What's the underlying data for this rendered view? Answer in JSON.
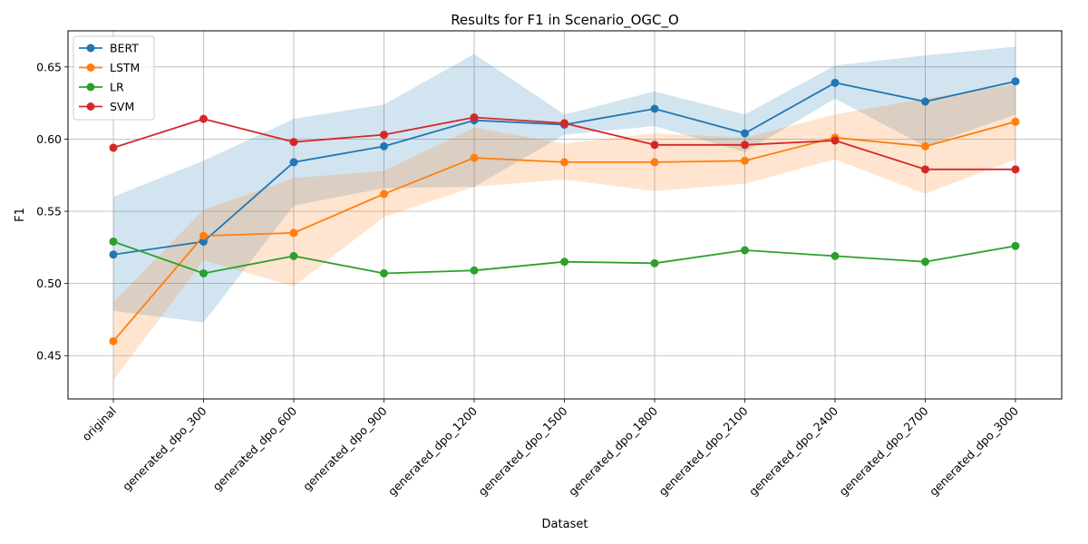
{
  "chart_data": {
    "type": "line",
    "title": "Results for F1 in Scenario_OGC_O",
    "xlabel": "Dataset",
    "ylabel": "F1",
    "ylim": [
      0.42,
      0.675
    ],
    "yticks": [
      0.45,
      0.5,
      0.55,
      0.6,
      0.65
    ],
    "ytick_labels": [
      "0.45",
      "0.50",
      "0.55",
      "0.60",
      "0.65"
    ],
    "grid": true,
    "legend_position": "top-left",
    "categories": [
      "original",
      "generated_dpo_300",
      "generated_dpo_600",
      "generated_dpo_900",
      "generated_dpo_1200",
      "generated_dpo_1500",
      "generated_dpo_1800",
      "generated_dpo_2100",
      "generated_dpo_2400",
      "generated_dpo_2700",
      "generated_dpo_3000"
    ],
    "series": [
      {
        "name": "BERT",
        "color": "#1f77b4",
        "values": [
          0.52,
          0.529,
          0.584,
          0.595,
          0.613,
          0.61,
          0.621,
          0.604,
          0.639,
          0.626,
          0.64
        ],
        "band_lower": [
          0.481,
          0.473,
          0.554,
          0.566,
          0.567,
          0.603,
          0.609,
          0.591,
          0.628,
          0.595,
          0.617
        ],
        "band_upper": [
          0.56,
          0.585,
          0.614,
          0.624,
          0.659,
          0.617,
          0.633,
          0.617,
          0.651,
          0.658,
          0.664
        ]
      },
      {
        "name": "LSTM",
        "color": "#ff7f0e",
        "values": [
          0.46,
          0.533,
          0.535,
          0.562,
          0.587,
          0.584,
          0.584,
          0.585,
          0.601,
          0.595,
          0.612
        ],
        "band_lower": [
          0.433,
          0.516,
          0.498,
          0.546,
          0.567,
          0.572,
          0.564,
          0.569,
          0.586,
          0.562,
          0.586
        ],
        "band_upper": [
          0.487,
          0.551,
          0.573,
          0.578,
          0.608,
          0.597,
          0.604,
          0.601,
          0.617,
          0.628,
          0.638
        ]
      },
      {
        "name": "LR",
        "color": "#2ca02c",
        "values": [
          0.529,
          0.507,
          0.519,
          0.507,
          0.509,
          0.515,
          0.514,
          0.523,
          0.519,
          0.515,
          0.526
        ]
      },
      {
        "name": "SVM",
        "color": "#d62728",
        "values": [
          0.594,
          0.614,
          0.598,
          0.603,
          0.615,
          0.611,
          0.596,
          0.596,
          0.599,
          0.579,
          0.579
        ]
      }
    ]
  }
}
